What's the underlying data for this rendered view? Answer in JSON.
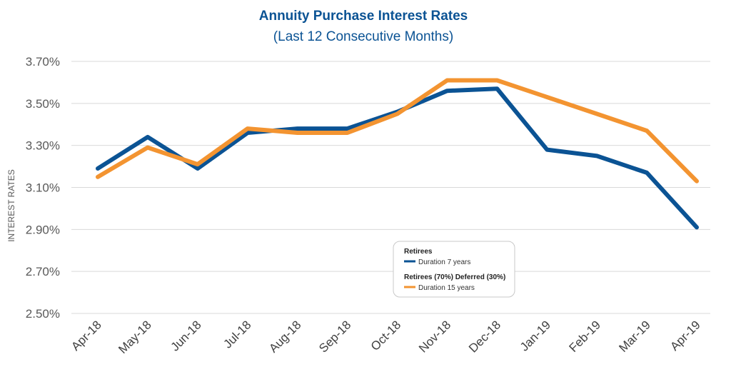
{
  "chart_data": {
    "type": "line",
    "title": "Annuity Purchase Interest Rates",
    "subtitle": "(Last 12 Consecutive Months)",
    "xlabel": "",
    "ylabel": "INTEREST RATES",
    "categories": [
      "Apr-18",
      "May-18",
      "Jun-18",
      "Jul-18",
      "Aug-18",
      "Sep-18",
      "Oct-18",
      "Nov-18",
      "Dec-18",
      "Jan-19",
      "Feb-19",
      "Mar-19",
      "Apr-19"
    ],
    "ylim": [
      2.5,
      3.7
    ],
    "yticks": [
      2.5,
      2.7,
      2.9,
      3.1,
      3.3,
      3.5,
      3.7
    ],
    "ytick_labels": [
      "2.50%",
      "2.70%",
      "2.90%",
      "3.10%",
      "3.30%",
      "3.50%",
      "3.70%"
    ],
    "grid": true,
    "legend_position": "bottom-center",
    "series": [
      {
        "name": "Retirees",
        "description": "Duration 7 years",
        "color": "#0B5394",
        "values": [
          3.19,
          3.34,
          3.19,
          3.36,
          3.38,
          3.38,
          3.46,
          3.56,
          3.57,
          3.28,
          3.25,
          3.17,
          2.91
        ]
      },
      {
        "name": "Retirees (70%) Deferred (30%)",
        "description": "Duration 15 years",
        "color": "#F39431",
        "values": [
          3.15,
          3.29,
          3.21,
          3.38,
          3.36,
          3.36,
          3.45,
          3.61,
          3.61,
          3.53,
          3.45,
          3.37,
          3.13
        ]
      }
    ],
    "title_color": "#0B5394",
    "grid_color": "#D9D9D9"
  }
}
